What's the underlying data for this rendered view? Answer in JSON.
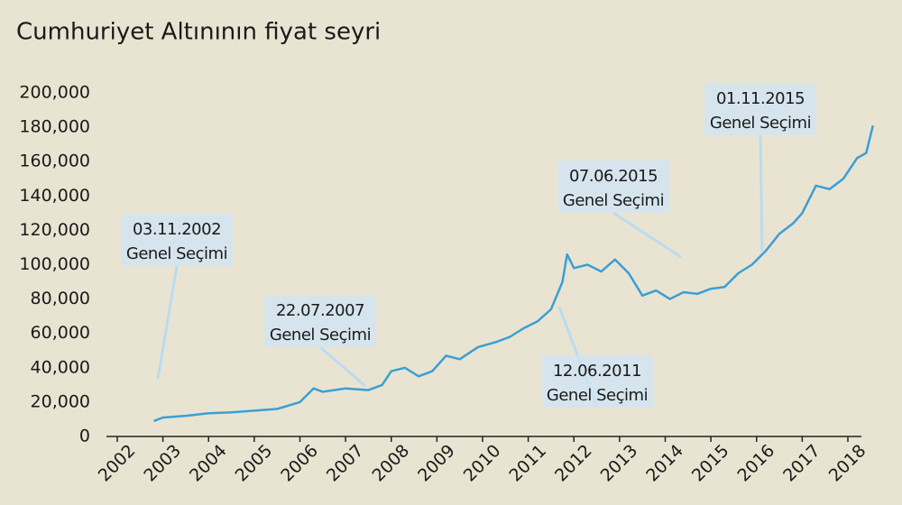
{
  "chart_data": {
    "type": "line",
    "title": "Cumhuriyet Altınının fiyat seyri",
    "x": [
      2002.8,
      2003.0,
      2003.5,
      2004.0,
      2004.5,
      2005.0,
      2005.5,
      2006.0,
      2006.3,
      2006.5,
      2007.0,
      2007.5,
      2007.8,
      2008.0,
      2008.3,
      2008.6,
      2008.9,
      2009.2,
      2009.5,
      2009.9,
      2010.3,
      2010.6,
      2010.9,
      2011.2,
      2011.5,
      2011.75,
      2011.85,
      2012.0,
      2012.3,
      2012.6,
      2012.9,
      2013.2,
      2013.5,
      2013.8,
      2014.1,
      2014.4,
      2014.7,
      2015.0,
      2015.3,
      2015.6,
      2015.9,
      2016.2,
      2016.5,
      2016.8,
      2017.0,
      2017.3,
      2017.6,
      2017.9,
      2018.2,
      2018.4,
      2018.55
    ],
    "values": [
      9000,
      11000,
      12000,
      13500,
      14000,
      15000,
      16000,
      20000,
      28000,
      26000,
      28000,
      27000,
      30000,
      38000,
      40000,
      35000,
      38000,
      47000,
      45000,
      52000,
      55000,
      58000,
      63000,
      67000,
      74000,
      90000,
      106000,
      98000,
      100000,
      96000,
      103000,
      95000,
      82000,
      85000,
      80000,
      84000,
      83000,
      86000,
      87000,
      95000,
      100000,
      108000,
      118000,
      124000,
      130000,
      146000,
      144000,
      150000,
      162000,
      165000,
      181000
    ],
    "color": "#3a9fd6",
    "xlim": [
      2002,
      2018
    ],
    "xticks": [
      2002,
      2003,
      2004,
      2005,
      2006,
      2007,
      2008,
      2009,
      2010,
      2011,
      2012,
      2013,
      2014,
      2015,
      2016,
      2017,
      2018
    ],
    "ylim": [
      0,
      200000
    ],
    "yticks": [
      0,
      {
        "value": 20000,
        "label": "20,000"
      },
      {
        "value": 40000,
        "label": "40,000"
      },
      {
        "value": 60000,
        "label": "60,000"
      },
      {
        "value": 80000,
        "label": "80,000"
      },
      {
        "value": 100000,
        "label": "100,000"
      },
      {
        "value": 120000,
        "label": "120,000"
      },
      {
        "value": 140000,
        "label": "140,000"
      },
      {
        "value": 160000,
        "label": "160,000"
      },
      {
        "value": 180000,
        "label": "180,000"
      },
      {
        "value": 200000,
        "label": "200,000"
      }
    ],
    "annotations": [
      {
        "date": "03.11.2002",
        "label": "Genel Seçimi"
      },
      {
        "date": "22.07.2007",
        "label": "Genel Seçimi"
      },
      {
        "date": "12.06.2011",
        "label": "Genel Seçimi"
      },
      {
        "date": "07.06.2015",
        "label": "Genel Seçimi"
      },
      {
        "date": "01.11.2015",
        "label": "Genel Seçimi"
      }
    ]
  }
}
